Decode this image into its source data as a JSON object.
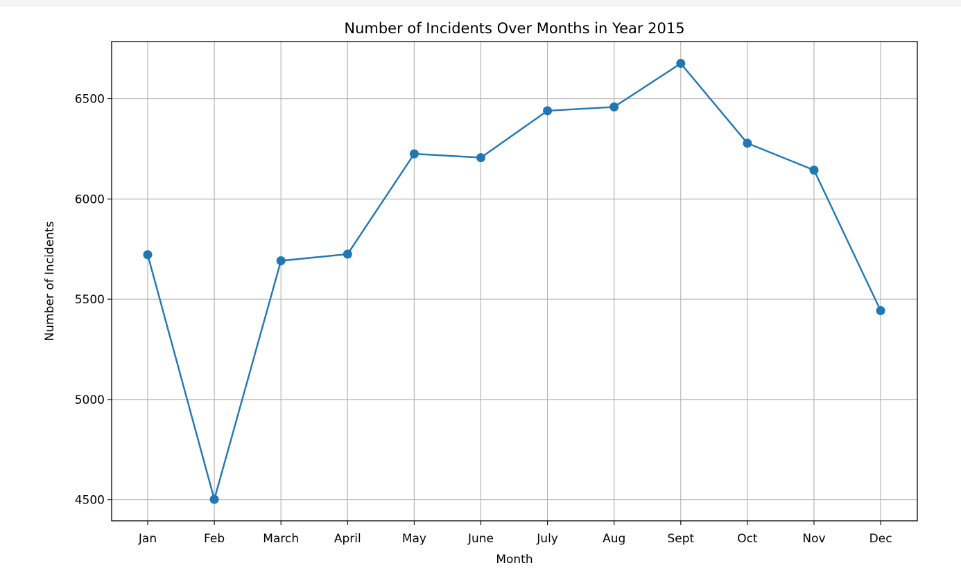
{
  "chart_data": {
    "type": "line",
    "title": "Number of Incidents Over Months in Year 2015",
    "xlabel": "Month",
    "ylabel": "Number of Incidents",
    "categories": [
      "Jan",
      "Feb",
      "March",
      "April",
      "May",
      "June",
      "July",
      "Aug",
      "Sept",
      "Oct",
      "Nov",
      "Dec"
    ],
    "series": [
      {
        "values": [
          5722,
          4502,
          5692,
          5725,
          6225,
          6206,
          6440,
          6459,
          6676,
          6278,
          6144,
          5443
        ],
        "color": "#1f77b4",
        "marker": "circle"
      }
    ],
    "ylim": [
      4395,
      6785
    ],
    "yticks": [
      4500,
      5000,
      5500,
      6000,
      6500
    ],
    "grid": true,
    "legend": "none"
  }
}
